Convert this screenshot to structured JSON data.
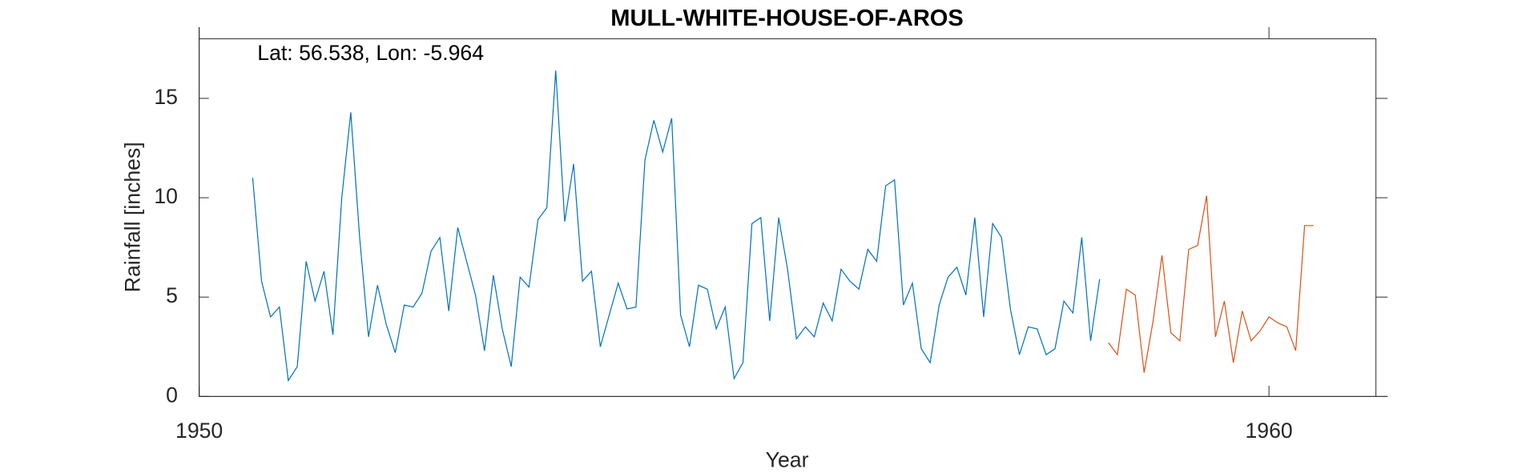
{
  "chart_data": {
    "type": "line",
    "title": "MULL-WHITE-HOUSE-OF-AROS",
    "annotation": "Lat: 56.538, Lon: -5.964",
    "xlabel": "Year",
    "ylabel": "Rainfall [inches]",
    "xlim": [
      1950,
      1961
    ],
    "xticks": [
      1950,
      1960
    ],
    "ylim": [
      0,
      18
    ],
    "yticks": [
      0,
      5,
      10,
      15
    ],
    "series": [
      {
        "color": "#0072bd",
        "x": [
          1950.5,
          1950.583,
          1950.667,
          1950.75,
          1950.833,
          1950.917,
          1951.0,
          1951.083,
          1951.167,
          1951.25,
          1951.333,
          1951.417,
          1951.5,
          1951.583,
          1951.667,
          1951.75,
          1951.833,
          1951.917,
          1952.0,
          1952.083,
          1952.167,
          1952.25,
          1952.333,
          1952.417,
          1952.5,
          1952.583,
          1952.667,
          1952.75,
          1952.833,
          1952.917,
          1953.0,
          1953.083,
          1953.167,
          1953.25,
          1953.333,
          1953.417,
          1953.5,
          1953.583,
          1953.667,
          1953.75,
          1953.833,
          1953.917,
          1954.0,
          1954.083,
          1954.167,
          1954.25,
          1954.333,
          1954.417,
          1954.5,
          1954.583,
          1954.667,
          1954.75,
          1954.833,
          1954.917,
          1955.0,
          1955.083,
          1955.167,
          1955.25,
          1955.333,
          1955.417,
          1955.5,
          1955.583,
          1955.667,
          1955.75,
          1955.833,
          1955.917,
          1956.0,
          1956.083,
          1956.167,
          1956.25,
          1956.333,
          1956.417,
          1956.5,
          1956.583,
          1956.667,
          1956.75,
          1956.833,
          1956.917,
          1957.0,
          1957.083,
          1957.167,
          1957.25,
          1957.333,
          1957.417,
          1957.5,
          1957.583,
          1957.667,
          1957.75,
          1957.833,
          1957.917,
          1958.0,
          1958.083,
          1958.167,
          1958.25,
          1958.333,
          1958.417
        ],
        "values": [
          11.0,
          5.8,
          4.0,
          4.5,
          0.8,
          1.5,
          6.8,
          4.8,
          6.3,
          3.1,
          10.0,
          14.3,
          8.0,
          3.0,
          5.6,
          3.6,
          2.2,
          4.6,
          4.5,
          5.2,
          7.3,
          8.0,
          4.3,
          8.5,
          6.8,
          5.1,
          2.3,
          6.1,
          3.4,
          1.5,
          6.0,
          5.5,
          8.9,
          9.5,
          16.4,
          8.8,
          11.7,
          5.8,
          6.3,
          2.5,
          4.1,
          5.7,
          4.4,
          4.5,
          11.9,
          13.9,
          12.3,
          14.0,
          4.1,
          2.5,
          5.6,
          5.4,
          3.4,
          4.5,
          0.9,
          1.7,
          8.7,
          9.0,
          3.8,
          9.0,
          6.4,
          2.9,
          3.5,
          3.0,
          4.7,
          3.8,
          6.4,
          5.8,
          5.4,
          7.4,
          6.8,
          10.6,
          10.9,
          4.6,
          5.7,
          2.4,
          1.7,
          4.6,
          6.0,
          6.5,
          5.1,
          9.0,
          4.0,
          8.7,
          8.0,
          4.4,
          2.1,
          3.5,
          3.4,
          2.1,
          2.4,
          4.8,
          4.2,
          8.0,
          2.8,
          5.9
        ]
      },
      {
        "color": "#d95319",
        "x": [
          1958.5,
          1958.583,
          1958.667,
          1958.75,
          1958.833,
          1958.917,
          1959.0,
          1959.083,
          1959.167,
          1959.25,
          1959.333,
          1959.417,
          1959.5,
          1959.583,
          1959.667,
          1959.75,
          1959.833,
          1959.917,
          1960.0,
          1960.083,
          1960.167,
          1960.25,
          1960.333,
          1960.417
        ],
        "values": [
          2.7,
          2.1,
          5.4,
          5.1,
          1.2,
          3.8,
          7.1,
          3.2,
          2.8,
          7.4,
          7.6,
          10.1,
          3.0,
          4.8,
          1.7,
          4.3,
          2.8,
          3.3,
          4.0,
          3.7,
          3.5,
          2.3,
          8.6,
          8.6
        ]
      }
    ]
  }
}
